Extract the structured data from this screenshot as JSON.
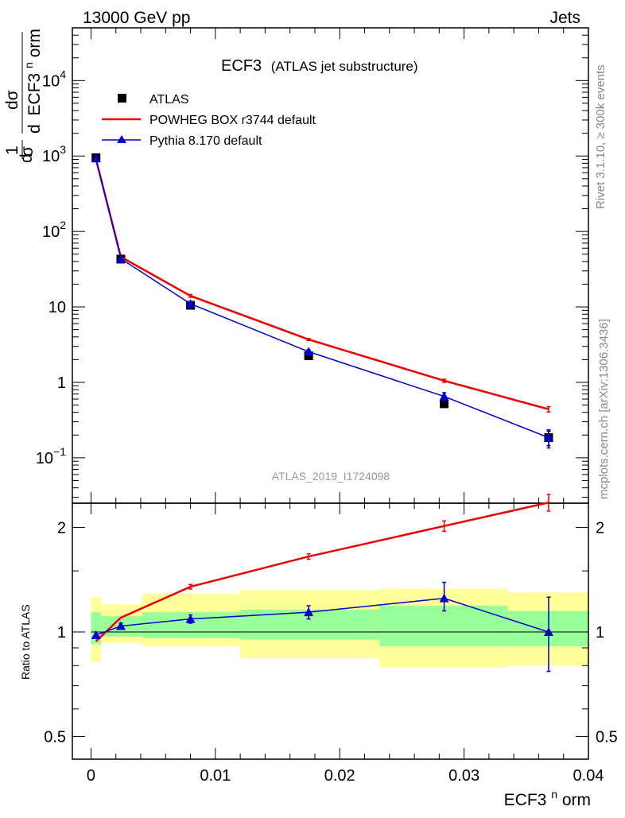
{
  "header": {
    "left": "13000 GeV pp",
    "right": "Jets"
  },
  "side_labels": {
    "rivet": "Rivet 3.1.10, ≥ 300k events",
    "mcplots": "mcplots.cern.ch [arXiv:1306.3436]"
  },
  "colors": {
    "data": "#000000",
    "powheg": "#ee0000",
    "pythia": "#0000cc",
    "band_outer": "#ffff99",
    "band_inner": "#99ff99",
    "watermark": "#999999"
  },
  "chart_data": [
    {
      "type": "line",
      "panel": "main",
      "title": "ECF3",
      "subtitle": "(ATLAS jet substructure)",
      "watermark": "ATLAS_2019_I1724098",
      "ylabel": {
        "frac_top": "1",
        "frac_bottom": "σ",
        "frac_d": "d",
        "deriv_top": "dσ",
        "deriv_bottom_d": "d",
        "deriv_bottom_var": "ECF3",
        "deriv_bottom_sup": "n",
        "deriv_bottom_tail": "orm"
      },
      "y_scale": "log",
      "ylim": [
        0.025,
        50000
      ],
      "xlim": [
        -0.0015,
        0.04
      ],
      "y_ticks": [
        {
          "value": 0.1,
          "label": "10",
          "sup": "−1"
        },
        {
          "value": 1,
          "label": "1",
          "sup": ""
        },
        {
          "value": 10,
          "label": "10",
          "sup": ""
        },
        {
          "value": 100,
          "label": "10",
          "sup": "2"
        },
        {
          "value": 1000,
          "label": "10",
          "sup": "3"
        },
        {
          "value": 10000,
          "label": "10",
          "sup": "4"
        }
      ],
      "legend": {
        "placement": "top-left",
        "entries": [
          {
            "key": "atlas",
            "label": "ATLAS",
            "style": "marker-square"
          },
          {
            "key": "powheg",
            "label": "POWHEG BOX r3744 default",
            "style": "line"
          },
          {
            "key": "pythia",
            "label": "Pythia 8.170 default",
            "style": "line-triangle"
          }
        ]
      },
      "series": [
        {
          "key": "atlas",
          "name": "ATLAS",
          "marker": "square",
          "x": [
            0.0004,
            0.0024,
            0.008,
            0.0175,
            0.0284,
            0.0368
          ],
          "y": [
            950,
            43,
            10.5,
            2.25,
            0.52,
            0.185
          ],
          "yerr": [
            [
              0,
              0
            ],
            [
              0,
              0
            ],
            [
              0,
              0
            ],
            [
              0,
              0
            ],
            [
              0,
              0
            ],
            [
              0.04,
              0.04
            ]
          ]
        },
        {
          "key": "powheg",
          "name": "POWHEG BOX r3744 default",
          "marker": "none",
          "x": [
            0.0004,
            0.0024,
            0.008,
            0.0175,
            0.0284,
            0.0368
          ],
          "y": [
            900,
            46,
            14,
            3.7,
            1.05,
            0.44
          ],
          "yerr": [
            [
              0,
              0
            ],
            [
              0,
              0
            ],
            [
              0.6,
              0.6
            ],
            [
              0.12,
              0.12
            ],
            [
              0.05,
              0.05
            ],
            [
              0.035,
              0.035
            ]
          ]
        },
        {
          "key": "pythia",
          "name": "Pythia 8.170 default",
          "marker": "triangle",
          "x": [
            0.0004,
            0.0024,
            0.008,
            0.0175,
            0.0284,
            0.0368
          ],
          "y": [
            930,
            43.5,
            11,
            2.55,
            0.65,
            0.185
          ],
          "yerr": [
            [
              0,
              0
            ],
            [
              0,
              0
            ],
            [
              0.6,
              0.6
            ],
            [
              0.15,
              0.15
            ],
            [
              0.08,
              0.08
            ],
            [
              0.05,
              0.05
            ]
          ]
        }
      ]
    },
    {
      "type": "line",
      "panel": "ratio",
      "ylabel": "Ratio to ATLAS",
      "xlabel": {
        "base": "ECF3",
        "sup": "n",
        "tail": "orm"
      },
      "y_scale": "log",
      "ylim": [
        0.43,
        2.35
      ],
      "xlim": [
        -0.0015,
        0.04
      ],
      "x_ticks": [
        {
          "value": 0,
          "label": "0"
        },
        {
          "value": 0.01,
          "label": "0.01"
        },
        {
          "value": 0.02,
          "label": "0.02"
        },
        {
          "value": 0.03,
          "label": "0.03"
        },
        {
          "value": 0.04,
          "label": "0.04"
        }
      ],
      "y_ticks": [
        {
          "value": 0.5,
          "label": "0.5"
        },
        {
          "value": 1,
          "label": "1"
        },
        {
          "value": 2,
          "label": "2"
        }
      ],
      "reference_line": 1,
      "bands": {
        "x_edges": [
          0.0,
          0.0008,
          0.0041,
          0.012,
          0.0232,
          0.0335,
          0.04
        ],
        "outer_low": [
          0.82,
          0.93,
          0.91,
          0.84,
          0.79,
          0.8
        ],
        "outer_high": [
          1.26,
          1.2,
          1.29,
          1.32,
          1.33,
          1.3
        ],
        "inner_low": [
          0.92,
          0.97,
          0.96,
          0.95,
          0.91,
          0.91
        ],
        "inner_high": [
          1.14,
          1.11,
          1.14,
          1.16,
          1.19,
          1.15
        ]
      },
      "series": [
        {
          "key": "powheg",
          "name": "POWHEG BOX r3744 default",
          "marker": "none",
          "x": [
            0.0004,
            0.0024,
            0.008,
            0.0175,
            0.0284,
            0.0368
          ],
          "y": [
            0.94,
            1.1,
            1.35,
            1.65,
            2.02,
            2.36
          ],
          "yerr": [
            [
              0,
              0
            ],
            [
              0,
              0
            ],
            [
              0.02,
              0.02
            ],
            [
              0.03,
              0.03
            ],
            [
              0.07,
              0.07
            ],
            [
              0.13,
              0.13
            ]
          ]
        },
        {
          "key": "pythia",
          "name": "Pythia 8.170 default",
          "marker": "triangle",
          "x": [
            0.0004,
            0.0024,
            0.008,
            0.0175,
            0.0284,
            0.0368
          ],
          "y": [
            0.98,
            1.04,
            1.09,
            1.14,
            1.25,
            1.0
          ],
          "yerr": [
            [
              0,
              0
            ],
            [
              0.02,
              0.02
            ],
            [
              0.03,
              0.03
            ],
            [
              0.05,
              0.05
            ],
            [
              0.1,
              0.14
            ],
            [
              0.23,
              0.26
            ]
          ]
        }
      ]
    }
  ]
}
